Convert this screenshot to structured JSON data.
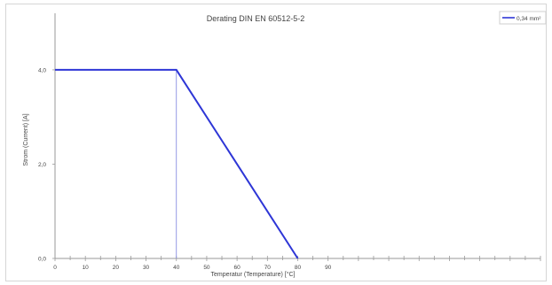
{
  "chart_data": {
    "type": "line",
    "title": "Derating DIN EN 60512-5-2",
    "xlabel": "Temperatur (Temperature) [°C]",
    "ylabel": "Strom (Current) [A]",
    "xlim": [
      0,
      160
    ],
    "ylim": [
      0,
      5.2
    ],
    "x_tick_labels": [
      "0",
      "10",
      "20",
      "30",
      "40",
      "50",
      "60",
      "70",
      "80",
      "90"
    ],
    "x_tick_values": [
      0,
      10,
      20,
      30,
      40,
      50,
      60,
      70,
      80,
      90
    ],
    "x_minor_step": 5,
    "y_tick_labels": [
      "0,0",
      "2,0",
      "4,0"
    ],
    "y_tick_values": [
      0,
      2,
      4
    ],
    "grid": false,
    "legend_position": "top-right",
    "colors": {
      "series": "#2e36d6",
      "guide": "#7a80de",
      "axis": "#9a9a9a"
    },
    "series": [
      {
        "name": "0,34 mm²",
        "x": [
          0,
          40,
          80
        ],
        "y": [
          4.0,
          4.0,
          0.0
        ]
      }
    ],
    "guides": [
      {
        "x": 40,
        "y_from": 0,
        "y_to": 4.0
      }
    ]
  }
}
